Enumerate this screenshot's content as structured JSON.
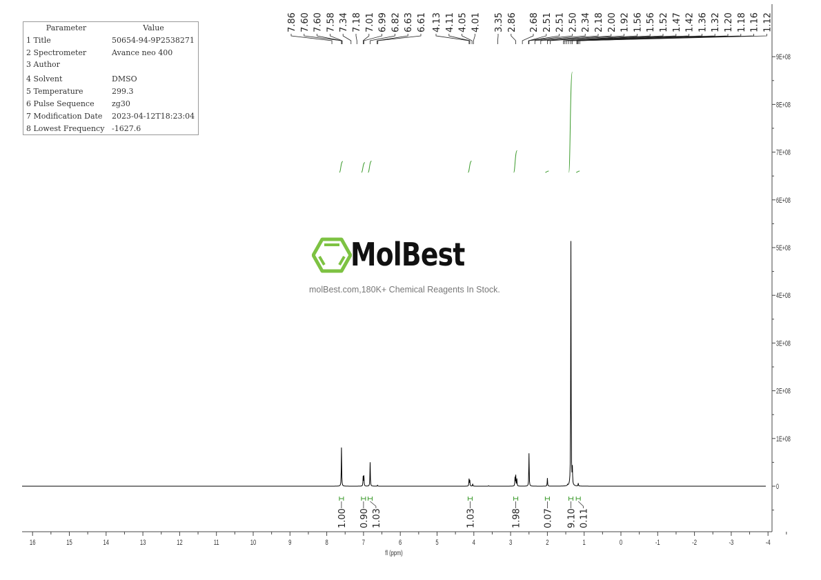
{
  "parameters": {
    "header": [
      "Parameter",
      "Value"
    ],
    "rows": [
      [
        "1 Title",
        "50654-94-9P2538271"
      ],
      [
        "2 Spectrometer",
        "Avance neo 400"
      ],
      [
        "3 Author",
        ""
      ],
      [
        "4 Solvent",
        "DMSO"
      ],
      [
        "5 Temperature",
        "299.3"
      ],
      [
        "6 Pulse Sequence",
        "zg30"
      ],
      [
        "7 Modification Date",
        "2023-04-12T18:23:04"
      ],
      [
        "8 Lowest Frequency",
        "-1627.6"
      ]
    ]
  },
  "watermark": {
    "brand": "MolBest",
    "tagline": "molBest.com,180K+ Chemical Reagents In Stock.",
    "logo_color": "#7dc242"
  },
  "chart_data": {
    "type": "line",
    "title": "",
    "xlabel": "fl (ppm)",
    "ylabel": "",
    "xlim": [
      16.3,
      -4
    ],
    "ylim": [
      -95000000.0,
      930000000.0
    ],
    "x_reversed": true,
    "grid": false,
    "xticks": [
      "16",
      "15",
      "14",
      "13",
      "12",
      "11",
      "10",
      "9",
      "8",
      "7",
      "6",
      "5",
      "4",
      "3",
      "2",
      "1",
      "0",
      "-1",
      "-2",
      "-3",
      "-4"
    ],
    "yticks": [
      "0",
      "1E+08",
      "2E+08",
      "3E+08",
      "4E+08",
      "5E+08",
      "6E+08",
      "7E+08",
      "8E+08",
      "9E+08"
    ],
    "line_color": "#000000",
    "integral_color": "#3a9a2a",
    "peak_labels": [
      "7.86",
      "7.60",
      "7.60",
      "7.58",
      "7.34",
      "7.18",
      "7.01",
      "6.99",
      "6.82",
      "6.63",
      "6.61",
      "4.13",
      "4.11",
      "4.05",
      "4.01",
      "3.35",
      "2.86",
      "2.68",
      "2.51",
      "2.51",
      "2.50",
      "2.34",
      "2.18",
      "2.00",
      "1.92",
      "1.56",
      "1.56",
      "1.52",
      "1.47",
      "1.42",
      "1.36",
      "1.32",
      "1.20",
      "1.18",
      "1.16",
      "1.12"
    ],
    "peaks": [
      {
        "ppm": 7.6,
        "height": 81000000.0
      },
      {
        "ppm": 7.01,
        "height": 20000000.0
      },
      {
        "ppm": 6.99,
        "height": 21000000.0
      },
      {
        "ppm": 6.82,
        "height": 50000000.0
      },
      {
        "ppm": 6.62,
        "height": 2000000.0
      },
      {
        "ppm": 4.13,
        "height": 15000000.0
      },
      {
        "ppm": 4.11,
        "height": 12000000.0
      },
      {
        "ppm": 4.03,
        "height": 5000000.0
      },
      {
        "ppm": 3.6,
        "height": 1000000.0
      },
      {
        "ppm": 2.88,
        "height": 18000000.0
      },
      {
        "ppm": 2.86,
        "height": 22000000.0
      },
      {
        "ppm": 2.83,
        "height": 15000000.0
      },
      {
        "ppm": 2.5,
        "height": 69000000.0
      },
      {
        "ppm": 2.0,
        "height": 17000000.0
      },
      {
        "ppm": 1.45,
        "height": 2000000.0
      },
      {
        "ppm": 1.36,
        "height": 513000000.0
      },
      {
        "ppm": 1.32,
        "height": 33000000.0
      },
      {
        "ppm": 1.16,
        "height": 6000000.0
      }
    ],
    "integrals": [
      {
        "ppm": 7.6,
        "value": "1.00"
      },
      {
        "ppm": 7.0,
        "value": "0.90"
      },
      {
        "ppm": 6.82,
        "value": "1.03"
      },
      {
        "ppm": 4.1,
        "value": "1.03"
      },
      {
        "ppm": 2.86,
        "value": "1.98"
      },
      {
        "ppm": 2.0,
        "value": "0.07"
      },
      {
        "ppm": 1.36,
        "value": "9.10"
      },
      {
        "ppm": 1.16,
        "value": "0.11"
      }
    ]
  }
}
